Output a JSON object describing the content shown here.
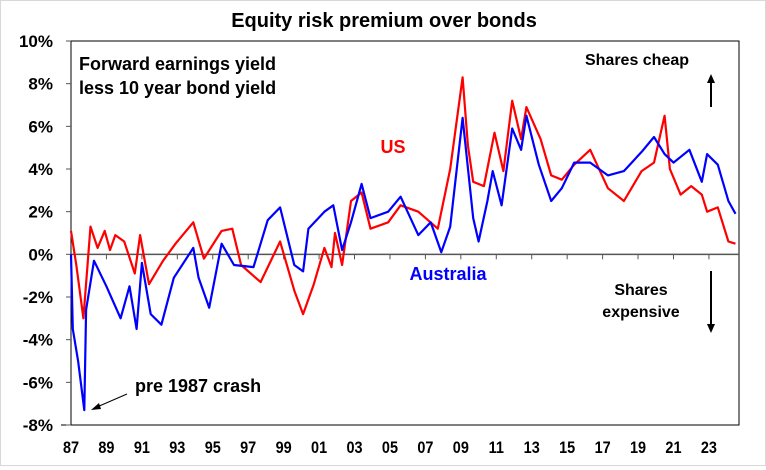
{
  "chart_data": {
    "type": "line",
    "title": "Equity risk premium over bonds",
    "xlabel": "",
    "ylabel": "",
    "xlim": [
      1987,
      2024.75
    ],
    "ylim": [
      -8,
      10
    ],
    "y_ticks": [
      10,
      8,
      6,
      4,
      2,
      0,
      -2,
      -4,
      -6,
      -8
    ],
    "y_tick_labels": [
      "10%",
      "8%",
      "6%",
      "4%",
      "2%",
      "0%",
      "-2%",
      "-4%",
      "-6%",
      "-8%"
    ],
    "x_ticks": [
      1987,
      1989,
      1991,
      1993,
      1995,
      1997,
      1999,
      2001,
      2003,
      2005,
      2007,
      2009,
      2011,
      2013,
      2015,
      2017,
      2019,
      2021,
      2023
    ],
    "x_tick_labels": [
      "87",
      "89",
      "91",
      "93",
      "95",
      "97",
      "99",
      "01",
      "03",
      "05",
      "07",
      "09",
      "11",
      "13",
      "15",
      "17",
      "19",
      "21",
      "23"
    ],
    "grid": false,
    "annotations": {
      "subtitle_line1": "Forward earnings yield",
      "subtitle_line2": "less 10 year bond yield",
      "shares_cheap": "Shares cheap",
      "shares_expensive_line1": "Shares",
      "shares_expensive_line2": "expensive",
      "crash": "pre 1987 crash"
    },
    "series": [
      {
        "name": "US",
        "color": "#ff0000",
        "points": [
          [
            1987.0,
            1.1
          ],
          [
            1987.3,
            -0.5
          ],
          [
            1987.7,
            -3.0
          ],
          [
            1988.1,
            1.3
          ],
          [
            1988.5,
            0.3
          ],
          [
            1988.9,
            1.1
          ],
          [
            1989.2,
            0.2
          ],
          [
            1989.5,
            0.9
          ],
          [
            1990.0,
            0.6
          ],
          [
            1990.6,
            -0.9
          ],
          [
            1990.9,
            0.9
          ],
          [
            1991.4,
            -1.4
          ],
          [
            1992.2,
            -0.3
          ],
          [
            1992.9,
            0.5
          ],
          [
            1993.9,
            1.5
          ],
          [
            1994.5,
            -0.2
          ],
          [
            1995.5,
            1.1
          ],
          [
            1996.1,
            1.2
          ],
          [
            1996.6,
            -0.5
          ],
          [
            1997.7,
            -1.3
          ],
          [
            1998.8,
            0.6
          ],
          [
            1999.6,
            -1.7
          ],
          [
            2000.1,
            -2.8
          ],
          [
            2000.7,
            -1.4
          ],
          [
            2001.3,
            0.3
          ],
          [
            2001.7,
            -0.6
          ],
          [
            2001.9,
            1.0
          ],
          [
            2002.3,
            -0.5
          ],
          [
            2002.8,
            2.5
          ],
          [
            2003.4,
            2.9
          ],
          [
            2003.9,
            1.2
          ],
          [
            2004.9,
            1.5
          ],
          [
            2005.6,
            2.3
          ],
          [
            2006.6,
            2.0
          ],
          [
            2007.7,
            1.2
          ],
          [
            2008.4,
            4.0
          ],
          [
            2009.1,
            8.3
          ],
          [
            2009.4,
            5.1
          ],
          [
            2009.7,
            3.4
          ],
          [
            2010.3,
            3.2
          ],
          [
            2010.9,
            5.7
          ],
          [
            2011.4,
            3.9
          ],
          [
            2011.9,
            7.2
          ],
          [
            2012.4,
            5.4
          ],
          [
            2012.7,
            6.9
          ],
          [
            2013.5,
            5.4
          ],
          [
            2014.1,
            3.7
          ],
          [
            2014.7,
            3.5
          ],
          [
            2015.4,
            4.2
          ],
          [
            2016.3,
            4.9
          ],
          [
            2017.3,
            3.1
          ],
          [
            2018.2,
            2.5
          ],
          [
            2019.2,
            3.9
          ],
          [
            2019.9,
            4.3
          ],
          [
            2020.5,
            6.5
          ],
          [
            2020.8,
            4.0
          ],
          [
            2021.4,
            2.8
          ],
          [
            2022.0,
            3.2
          ],
          [
            2022.6,
            2.8
          ],
          [
            2022.9,
            2.0
          ],
          [
            2023.5,
            2.2
          ],
          [
            2024.1,
            0.6
          ],
          [
            2024.5,
            0.5
          ]
        ]
      },
      {
        "name": "Australia",
        "color": "#0000ff",
        "points": [
          [
            1987.0,
            0.0
          ],
          [
            1987.1,
            -3.5
          ],
          [
            1987.4,
            -5.0
          ],
          [
            1987.75,
            -7.3
          ],
          [
            1987.85,
            -2.6
          ],
          [
            1988.3,
            -0.3
          ],
          [
            1989.0,
            -1.5
          ],
          [
            1989.8,
            -3.0
          ],
          [
            1990.3,
            -1.5
          ],
          [
            1990.7,
            -3.5
          ],
          [
            1991.0,
            -0.4
          ],
          [
            1991.5,
            -2.8
          ],
          [
            1992.1,
            -3.3
          ],
          [
            1992.8,
            -1.1
          ],
          [
            1993.9,
            0.3
          ],
          [
            1994.2,
            -1.1
          ],
          [
            1994.8,
            -2.5
          ],
          [
            1995.5,
            0.5
          ],
          [
            1996.2,
            -0.5
          ],
          [
            1997.3,
            -0.6
          ],
          [
            1998.1,
            1.6
          ],
          [
            1998.8,
            2.2
          ],
          [
            1999.6,
            -0.5
          ],
          [
            2000.1,
            -0.8
          ],
          [
            2000.4,
            1.2
          ],
          [
            2001.3,
            2.0
          ],
          [
            2001.8,
            2.3
          ],
          [
            2002.3,
            0.2
          ],
          [
            2002.8,
            1.5
          ],
          [
            2003.4,
            3.3
          ],
          [
            2003.9,
            1.7
          ],
          [
            2004.9,
            2.0
          ],
          [
            2005.6,
            2.7
          ],
          [
            2006.6,
            0.9
          ],
          [
            2007.3,
            1.5
          ],
          [
            2007.9,
            0.1
          ],
          [
            2008.4,
            1.3
          ],
          [
            2009.1,
            6.4
          ],
          [
            2009.7,
            1.7
          ],
          [
            2010.0,
            0.6
          ],
          [
            2010.5,
            2.5
          ],
          [
            2010.8,
            3.9
          ],
          [
            2011.3,
            2.3
          ],
          [
            2011.9,
            5.9
          ],
          [
            2012.4,
            4.9
          ],
          [
            2012.7,
            6.5
          ],
          [
            2013.4,
            4.2
          ],
          [
            2014.1,
            2.5
          ],
          [
            2014.7,
            3.1
          ],
          [
            2015.4,
            4.3
          ],
          [
            2016.3,
            4.3
          ],
          [
            2017.3,
            3.7
          ],
          [
            2018.2,
            3.9
          ],
          [
            2019.2,
            4.8
          ],
          [
            2019.9,
            5.5
          ],
          [
            2020.5,
            4.7
          ],
          [
            2021.0,
            4.3
          ],
          [
            2021.9,
            4.9
          ],
          [
            2022.6,
            3.4
          ],
          [
            2022.9,
            4.7
          ],
          [
            2023.5,
            4.2
          ],
          [
            2024.1,
            2.5
          ],
          [
            2024.5,
            1.9
          ]
        ]
      }
    ]
  }
}
